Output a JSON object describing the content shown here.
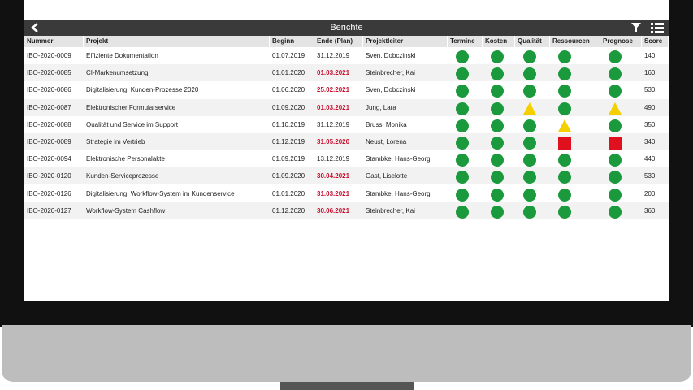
{
  "header": {
    "title": "Berichte"
  },
  "table": {
    "columns": [
      "Nummer",
      "Projekt",
      "Beginn",
      "Ende (Plan)",
      "Projektleiter",
      "Termine",
      "Kosten",
      "Qualität",
      "Ressourcen",
      "Prognose",
      "Score"
    ],
    "rows": [
      {
        "nummer": "IBO-2020-0009",
        "projekt": "Effiziente Dokumentation",
        "beginn": "01.07.2019",
        "ende": "31.12.2019",
        "ende_late": false,
        "projektleiter": "Sven, Dobczinski",
        "status": [
          "green",
          "green",
          "green",
          "green",
          "green"
        ],
        "score": "140"
      },
      {
        "nummer": "IBO-2020-0085",
        "projekt": "CI-Markenumsetzung",
        "beginn": "01.01.2020",
        "ende": "01.03.2021",
        "ende_late": true,
        "projektleiter": "Steinbrecher, Kai",
        "status": [
          "green",
          "green",
          "green",
          "green",
          "green"
        ],
        "score": "160"
      },
      {
        "nummer": "IBO-2020-0086",
        "projekt": "Digitalisierung: Kunden-Prozesse 2020",
        "beginn": "01.06.2020",
        "ende": "25.02.2021",
        "ende_late": true,
        "projektleiter": "Sven, Dobczinski",
        "status": [
          "green",
          "green",
          "green",
          "green",
          "green"
        ],
        "score": "530"
      },
      {
        "nummer": "IBO-2020-0087",
        "projekt": "Elektronischer Formularservice",
        "beginn": "01.09.2020",
        "ende": "01.03.2021",
        "ende_late": true,
        "projektleiter": "Jung, Lara",
        "status": [
          "green",
          "green",
          "yellow",
          "green",
          "yellow"
        ],
        "score": "490"
      },
      {
        "nummer": "IBO-2020-0088",
        "projekt": "Qualität und Service im Support",
        "beginn": "01.10.2019",
        "ende": "31.12.2019",
        "ende_late": false,
        "projektleiter": "Bruss, Monika",
        "status": [
          "green",
          "green",
          "green",
          "yellow",
          "green"
        ],
        "score": "350"
      },
      {
        "nummer": "IBO-2020-0089",
        "projekt": "Strategie im Vertrieb",
        "beginn": "01.12.2019",
        "ende": "31.05.2020",
        "ende_late": true,
        "projektleiter": "Neust, Lorena",
        "status": [
          "green",
          "green",
          "green",
          "red",
          "red"
        ],
        "score": "340"
      },
      {
        "nummer": "IBO-2020-0094",
        "projekt": "Elektronische Personalakte",
        "beginn": "01.09.2019",
        "ende": "13.12.2019",
        "ende_late": false,
        "projektleiter": "Stambke, Hans-Georg",
        "status": [
          "green",
          "green",
          "green",
          "green",
          "green"
        ],
        "score": "440"
      },
      {
        "nummer": "IBO-2020-0120",
        "projekt": "Kunden-Serviceprozesse",
        "beginn": "01.09.2020",
        "ende": "30.04.2021",
        "ende_late": true,
        "projektleiter": "Gast, Liselotte",
        "status": [
          "green",
          "green",
          "green",
          "green",
          "green"
        ],
        "score": "530"
      },
      {
        "nummer": "IBO-2020-0126",
        "projekt": "Digitalisierung: Workflow-System im Kundenservice",
        "beginn": "01.01.2020",
        "ende": "31.03.2021",
        "ende_late": true,
        "projektleiter": "Stambke, Hans-Georg",
        "status": [
          "green",
          "green",
          "green",
          "green",
          "green"
        ],
        "score": "200"
      },
      {
        "nummer": "IBO-2020-0127",
        "projekt": "Workflow-System Cashflow",
        "beginn": "01.12.2020",
        "ende": "30.06.2021",
        "ende_late": true,
        "projektleiter": "Steinbrecher, Kai",
        "status": [
          "green",
          "green",
          "green",
          "green",
          "green"
        ],
        "score": "360"
      }
    ]
  }
}
